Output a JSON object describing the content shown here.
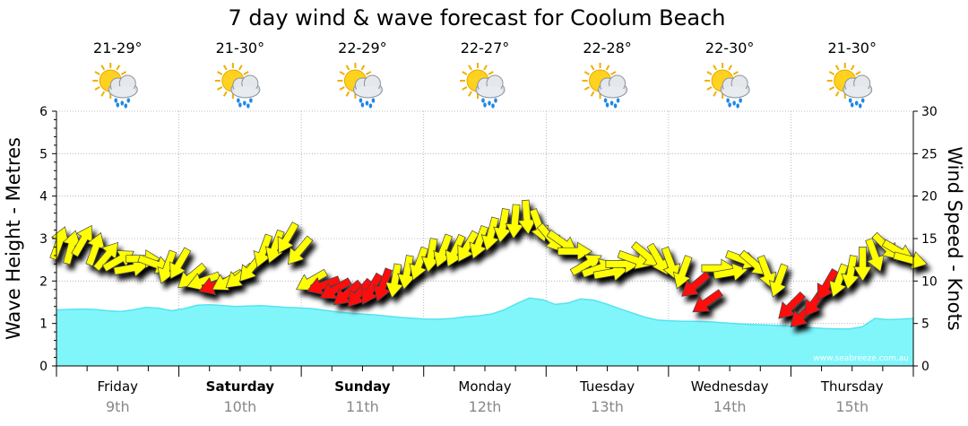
{
  "chart_data": {
    "type": "area",
    "title": "7 day wind & wave forecast for Coolum Beach",
    "ylabel_left": "Wave Height - Metres",
    "ylabel_right": "Wind Speed - Knots",
    "y_left_range": [
      0,
      6
    ],
    "y_left_ticks": [
      "0",
      "1",
      "2",
      "3",
      "4",
      "5",
      "6"
    ],
    "y_right_range": [
      0,
      30
    ],
    "y_right_ticks": [
      "0",
      "5",
      "10",
      "15",
      "20",
      "25",
      "30"
    ],
    "watermark": "www.seabreeze.com.au",
    "grid": true,
    "colors": {
      "wave_fill": "#80f6fb",
      "wave_line": "#55e3ef",
      "wind_light": "#ffff00",
      "wind_strong": "#ff1010",
      "grid": "#aaaaaa"
    },
    "days": [
      {
        "day": "Friday",
        "date": "9th",
        "temp": "21-29°",
        "weekend": false,
        "icon": "sun-cloud-rain-icon"
      },
      {
        "day": "Saturday",
        "date": "10th",
        "temp": "21-30°",
        "weekend": true,
        "icon": "sun-cloud-rain-icon"
      },
      {
        "day": "Sunday",
        "date": "11th",
        "temp": "22-29°",
        "weekend": true,
        "icon": "sun-cloud-rain-icon"
      },
      {
        "day": "Monday",
        "date": "12th",
        "temp": "22-27°",
        "weekend": false,
        "icon": "sun-cloud-rain-icon"
      },
      {
        "day": "Tuesday",
        "date": "13th",
        "temp": "22-28°",
        "weekend": false,
        "icon": "sun-cloud-rain-icon"
      },
      {
        "day": "Wednesday",
        "date": "14th",
        "temp": "22-30°",
        "weekend": false,
        "icon": "sun-cloud-rain-icon"
      },
      {
        "day": "Thursday",
        "date": "15th",
        "temp": "21-30°",
        "weekend": false,
        "icon": "sun-cloud-rain-icon"
      }
    ],
    "wave_height_m": [
      1.32,
      1.33,
      1.34,
      1.33,
      1.3,
      1.28,
      1.32,
      1.38,
      1.36,
      1.3,
      1.35,
      1.43,
      1.44,
      1.42,
      1.4,
      1.41,
      1.42,
      1.4,
      1.38,
      1.37,
      1.35,
      1.31,
      1.27,
      1.24,
      1.22,
      1.2,
      1.17,
      1.14,
      1.12,
      1.1,
      1.1,
      1.12,
      1.16,
      1.18,
      1.22,
      1.32,
      1.47,
      1.6,
      1.56,
      1.45,
      1.48,
      1.58,
      1.55,
      1.46,
      1.35,
      1.25,
      1.15,
      1.08,
      1.06,
      1.05,
      1.05,
      1.04,
      1.02,
      1.0,
      0.98,
      0.97,
      0.96,
      0.95,
      0.93,
      0.9,
      0.88,
      0.87,
      0.87,
      0.92,
      1.12,
      1.09,
      1.1,
      1.12
    ],
    "wind_knots": [
      14.5,
      14.0,
      14.8,
      13.8,
      13.0,
      12.5,
      11.5,
      12.6,
      12.0,
      11.6,
      12.0,
      10.5,
      10.0,
      9.5,
      10.0,
      10.5,
      11.5,
      13.5,
      14.0,
      15.0,
      13.5,
      10.0,
      9.5,
      9.0,
      8.5,
      8.5,
      9.0,
      9.5,
      10.0,
      11.0,
      12.0,
      13.0,
      13.5,
      13.5,
      14.0,
      14.5,
      15.5,
      16.5,
      17.0,
      17.5,
      16.5,
      15.0,
      14.5,
      13.5,
      12.0,
      11.5,
      11.0,
      12.0,
      12.5,
      13.0,
      12.5,
      12.0,
      11.0,
      9.5,
      7.5,
      11.5,
      11.0,
      12.5,
      12.0,
      11.0,
      10.0,
      7.0,
      6.0,
      7.5,
      9.5,
      10.0,
      11.0,
      12.0,
      13.0,
      14.0,
      13.5,
      12.5
    ],
    "wind_dir_deg": [
      20,
      15,
      30,
      20,
      40,
      60,
      80,
      90,
      110,
      200,
      210,
      230,
      250,
      250,
      240,
      230,
      220,
      200,
      200,
      210,
      220,
      240,
      250,
      240,
      230,
      220,
      210,
      200,
      190,
      190,
      200,
      190,
      200,
      205,
      210,
      200,
      195,
      190,
      185,
      175,
      160,
      140,
      125,
      90,
      60,
      70,
      80,
      90,
      110,
      130,
      150,
      160,
      200,
      230,
      235,
      90,
      80,
      110,
      130,
      160,
      200,
      225,
      225,
      215,
      210,
      200,
      190,
      180,
      160,
      135,
      120,
      105
    ],
    "wind_strong_threshold_kn": 10
  }
}
